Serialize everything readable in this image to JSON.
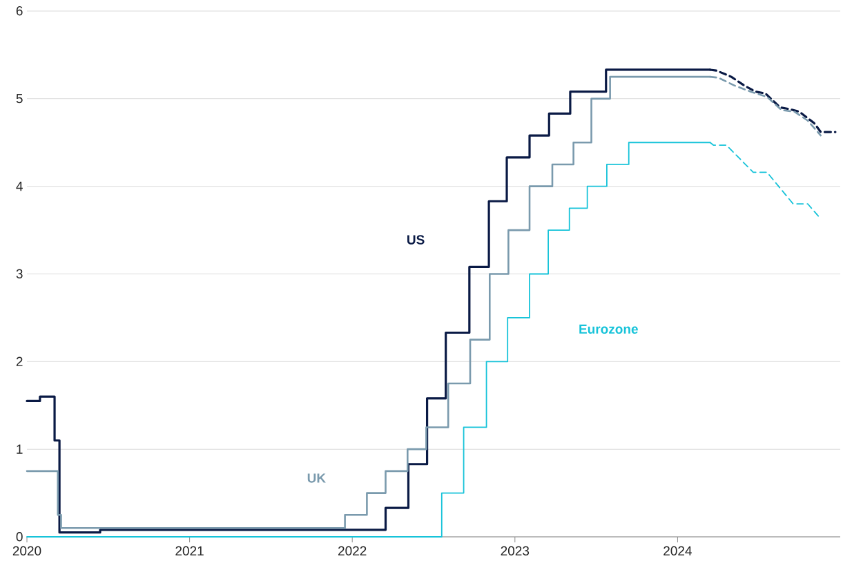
{
  "chart_data": {
    "type": "step",
    "xlim": [
      2020,
      2025
    ],
    "xticks": [
      2020,
      2021,
      2022,
      2023,
      2024
    ],
    "ylim": [
      0,
      6
    ],
    "yticks": [
      0,
      1,
      2,
      3,
      4,
      5,
      6
    ],
    "grid": "y",
    "series": [
      {
        "name": "US",
        "color": "#0a1a45",
        "line_style": "solid",
        "x": [
          2020,
          2020.08,
          2020.17,
          2020.2,
          2020.45,
          2022.205,
          2022.345,
          2022.46,
          2022.575,
          2022.72,
          2022.84,
          2022.95,
          2023.09,
          2023.21,
          2023.34,
          2023.56,
          2024.2
        ],
        "values": [
          1.55,
          1.6,
          1.1,
          0.05,
          0.08,
          0.33,
          0.83,
          1.58,
          2.33,
          3.08,
          3.83,
          4.33,
          4.58,
          4.83,
          5.08,
          5.33,
          5.33
        ]
      },
      {
        "name": "UK",
        "color": "#7a9aad",
        "line_style": "solid",
        "x": [
          2020,
          2020.19,
          2020.21,
          2021.955,
          2022.09,
          2022.205,
          2022.34,
          2022.455,
          2022.59,
          2022.725,
          2022.845,
          2022.96,
          2023.09,
          2023.23,
          2023.36,
          2023.47,
          2023.585,
          2024.2
        ],
        "values": [
          0.75,
          0.25,
          0.1,
          0.25,
          0.5,
          0.75,
          1.0,
          1.25,
          1.75,
          2.25,
          3.0,
          3.5,
          4.0,
          4.25,
          4.5,
          5.0,
          5.25,
          5.25
        ]
      },
      {
        "name": "Eurozone",
        "color": "#17c3d9",
        "line_style": "solid",
        "x": [
          2020,
          2022.55,
          2022.685,
          2022.825,
          2022.955,
          2023.09,
          2023.205,
          2023.335,
          2023.445,
          2023.565,
          2023.7,
          2024.2
        ],
        "values": [
          0,
          0.5,
          1.25,
          2.0,
          2.5,
          3.0,
          3.5,
          3.75,
          4.0,
          4.25,
          4.5,
          4.5
        ]
      },
      {
        "type": "line",
        "color": "#0a1a45",
        "line_style": "dashed",
        "x": [
          2024.2,
          2024.24,
          2024.33,
          2024.41,
          2024.48,
          2024.54,
          2024.63,
          2024.69,
          2024.75,
          2024.84,
          2024.88,
          2024.97
        ],
        "values": [
          5.33,
          5.32,
          5.25,
          5.15,
          5.08,
          5.06,
          4.9,
          4.88,
          4.85,
          4.72,
          4.62,
          4.62
        ]
      },
      {
        "type": "line",
        "color": "#7a9aad",
        "line_style": "dashed",
        "x": [
          2024.2,
          2024.25,
          2024.35,
          2024.45,
          2024.55,
          2024.64,
          2024.72,
          2024.8,
          2024.88
        ],
        "values": [
          5.25,
          5.24,
          5.15,
          5.08,
          5.02,
          4.87,
          4.85,
          4.75,
          4.58
        ]
      },
      {
        "type": "line",
        "color": "#17c3d9",
        "line_style": "dashed",
        "x": [
          2024.2,
          2024.22,
          2024.3,
          2024.465,
          2024.55,
          2024.71,
          2024.8,
          2024.87
        ],
        "values": [
          4.5,
          4.47,
          4.47,
          4.16,
          4.16,
          3.8,
          3.8,
          3.65
        ]
      }
    ]
  }
}
